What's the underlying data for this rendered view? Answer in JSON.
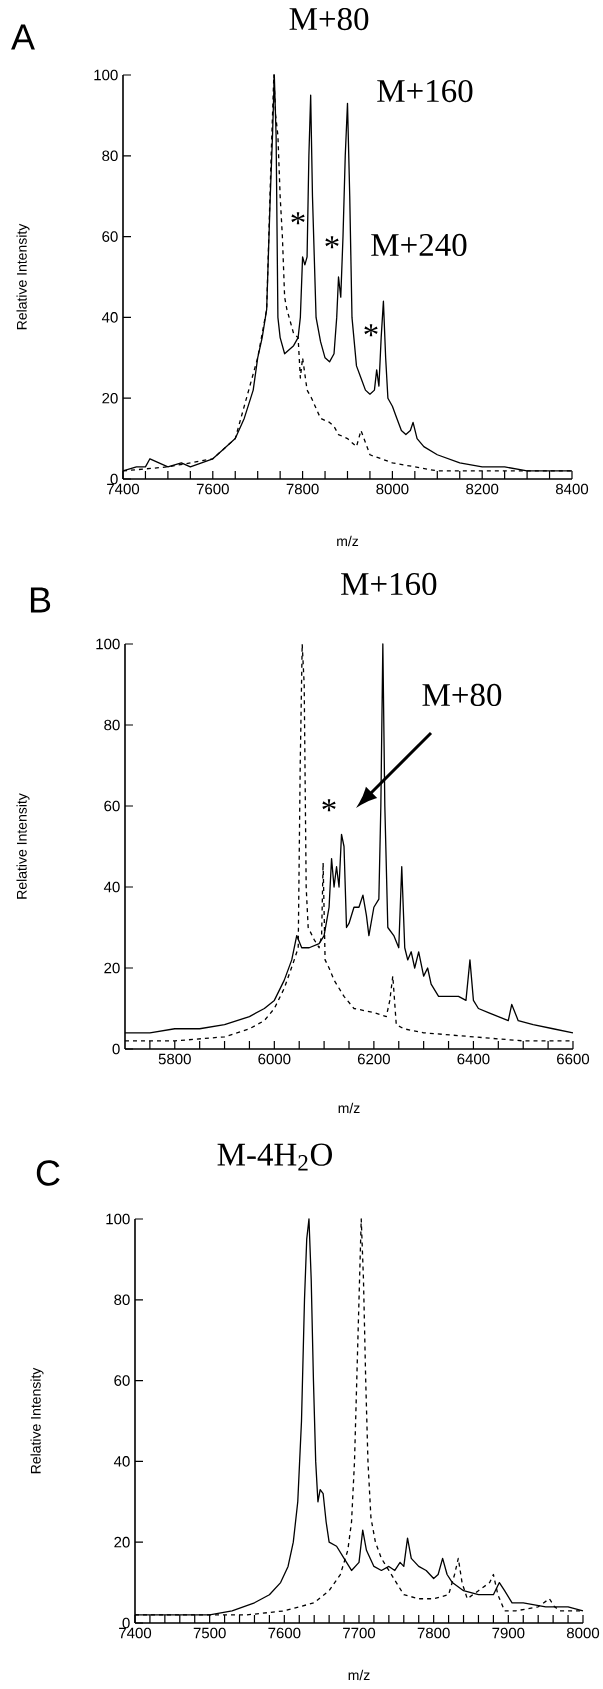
{
  "chart_data": [
    {
      "type": "line",
      "title": "M+80",
      "xlabel": "m/z",
      "ylabel": "Relative Intensity",
      "xlim": [
        7400,
        8400
      ],
      "ylim": [
        0,
        100
      ],
      "xticks": [
        7400,
        {
          "value": 7450,
          "label": null
        },
        {
          "value": 7500,
          "label": null
        },
        {
          "value": 7550,
          "label": null
        },
        7600,
        {
          "value": 7650,
          "label": null
        },
        {
          "value": 7700,
          "label": null
        },
        {
          "value": 7750,
          "label": null
        },
        7800,
        {
          "value": 7850,
          "label": null
        },
        {
          "value": 7900,
          "label": null
        },
        {
          "value": 7950,
          "label": null
        },
        8000,
        {
          "value": 8050,
          "label": null
        },
        {
          "value": 8100,
          "label": null
        },
        {
          "value": 8150,
          "label": null
        },
        8200,
        {
          "value": 8250,
          "label": null
        },
        {
          "value": 8300,
          "label": null
        },
        {
          "value": 8350,
          "label": null
        },
        8400
      ],
      "yticks": [
        0,
        20,
        40,
        60,
        80,
        100
      ],
      "annotations": [
        "A",
        "M+160",
        "M+240",
        "*",
        "*",
        "*"
      ],
      "series": [
        {
          "color": "#000000",
          "line_style": "solid",
          "x": [
            7400,
            7430,
            7450,
            7460,
            7500,
            7530,
            7550,
            7600,
            7620,
            7650,
            7670,
            7690,
            7700,
            7710,
            7720,
            7728,
            7733,
            7737,
            7741,
            7745,
            7750,
            7760,
            7770,
            7780,
            7790,
            7795,
            7800,
            7805,
            7810,
            7814,
            7818,
            7822,
            7830,
            7840,
            7850,
            7860,
            7870,
            7876,
            7880,
            7885,
            7890,
            7895,
            7900,
            7905,
            7910,
            7920,
            7930,
            7940,
            7950,
            7960,
            7965,
            7970,
            7975,
            7980,
            7985,
            7990,
            8000,
            8010,
            8020,
            8030,
            8040,
            8046,
            8055,
            8070,
            8100,
            8150,
            8200,
            8250,
            8300,
            8350,
            8400
          ],
          "values": [
            2,
            3,
            3,
            5,
            3,
            4,
            3,
            5,
            7,
            10,
            15,
            22,
            30,
            35,
            42,
            70,
            85,
            100,
            85,
            40,
            35,
            31,
            32,
            33,
            35,
            40,
            55,
            53,
            55,
            80,
            95,
            70,
            40,
            34,
            30,
            29,
            31,
            40,
            50,
            45,
            60,
            80,
            93,
            70,
            40,
            28,
            25,
            22,
            21,
            22,
            27,
            23,
            35,
            44,
            30,
            20,
            18,
            15,
            12,
            11,
            12,
            14,
            10,
            8,
            6,
            4,
            3,
            3,
            2,
            2,
            2
          ]
        },
        {
          "color": "#000000",
          "line_style": "dashed",
          "x": [
            7400,
            7500,
            7600,
            7650,
            7700,
            7720,
            7730,
            7736,
            7740,
            7745,
            7750,
            7755,
            7760,
            7765,
            7770,
            7780,
            7790,
            7795,
            7800,
            7810,
            7820,
            7840,
            7860,
            7870,
            7880,
            7900,
            7920,
            7930,
            7950,
            8000,
            8050,
            8100,
            8200,
            8300,
            8400
          ],
          "values": [
            2,
            3,
            5,
            10,
            30,
            42,
            80,
            100,
            90,
            85,
            70,
            60,
            45,
            42,
            40,
            36,
            35,
            25,
            30,
            22,
            20,
            15,
            14,
            13,
            11,
            10,
            8,
            12,
            6,
            4,
            3,
            2,
            2,
            2,
            2
          ]
        }
      ]
    },
    {
      "type": "line",
      "title": "M+160",
      "xlabel": "m/z",
      "ylabel": "Relative Intensity",
      "xlim": [
        5700,
        6600
      ],
      "ylim": [
        0,
        100
      ],
      "xticks": [
        {
          "value": 5750,
          "label": null
        },
        5800,
        {
          "value": 5850,
          "label": null
        },
        {
          "value": 5900,
          "label": null
        },
        {
          "value": 5950,
          "label": null
        },
        6000,
        {
          "value": 6050,
          "label": null
        },
        {
          "value": 6100,
          "label": null
        },
        {
          "value": 6150,
          "label": null
        },
        6200,
        {
          "value": 6250,
          "label": null
        },
        {
          "value": 6300,
          "label": null
        },
        {
          "value": 6350,
          "label": null
        },
        6400,
        {
          "value": 6450,
          "label": null
        },
        {
          "value": 6500,
          "label": null
        },
        {
          "value": 6550,
          "label": null
        },
        6600
      ],
      "yticks": [
        0,
        20,
        40,
        60,
        80,
        100
      ],
      "annotations": [
        "B",
        "*",
        "M+80"
      ],
      "series": [
        {
          "color": "#000000",
          "line_style": "solid",
          "x": [
            5700,
            5750,
            5800,
            5850,
            5900,
            5950,
            5980,
            6000,
            6020,
            6035,
            6045,
            6055,
            6070,
            6090,
            6100,
            6110,
            6115,
            6120,
            6125,
            6130,
            6135,
            6140,
            6145,
            6150,
            6160,
            6170,
            6178,
            6185,
            6190,
            6200,
            6210,
            6214,
            6218,
            6222,
            6228,
            6240,
            6250,
            6256,
            6262,
            6268,
            6275,
            6282,
            6290,
            6300,
            6308,
            6315,
            6330,
            6350,
            6370,
            6385,
            6393,
            6400,
            6410,
            6430,
            6450,
            6470,
            6477,
            6490,
            6520,
            6560,
            6600
          ],
          "values": [
            4,
            4,
            5,
            5,
            6,
            8,
            10,
            12,
            17,
            22,
            28,
            25,
            25,
            26,
            28,
            35,
            47,
            40,
            45,
            40,
            53,
            50,
            30,
            31,
            35,
            35,
            38,
            33,
            28,
            35,
            37,
            60,
            100,
            60,
            30,
            28,
            25,
            45,
            25,
            22,
            24,
            20,
            24,
            18,
            20,
            16,
            13,
            13,
            13,
            12,
            22,
            12,
            10,
            9,
            8,
            7,
            11,
            7,
            6,
            5,
            4
          ]
        },
        {
          "color": "#000000",
          "line_style": "dashed",
          "x": [
            5700,
            5800,
            5900,
            5950,
            5980,
            6000,
            6020,
            6040,
            6048,
            6052,
            6056,
            6060,
            6064,
            6068,
            6080,
            6090,
            6095,
            6098,
            6102,
            6110,
            6120,
            6140,
            6160,
            6200,
            6225,
            6232,
            6238,
            6245,
            6260,
            6300,
            6400,
            6500,
            6600
          ],
          "values": [
            2,
            2,
            3,
            5,
            7,
            10,
            15,
            22,
            25,
            70,
            100,
            90,
            40,
            30,
            27,
            25,
            28,
            46,
            22,
            20,
            17,
            13,
            10,
            9,
            8,
            12,
            18,
            6,
            5,
            4,
            3,
            2,
            2
          ]
        }
      ]
    },
    {
      "type": "line",
      "title": "M-4H$_{2}$O",
      "xlabel": "m/z",
      "ylabel": "Relative Intensity",
      "xlim": [
        7400,
        8000
      ],
      "ylim": [
        0,
        100
      ],
      "xticks": [
        7400,
        {
          "value": 7420,
          "label": null
        },
        {
          "value": 7440,
          "label": null
        },
        {
          "value": 7460,
          "label": null
        },
        {
          "value": 7480,
          "label": null
        },
        7500,
        {
          "value": 7520,
          "label": null
        },
        {
          "value": 7540,
          "label": null
        },
        {
          "value": 7560,
          "label": null
        },
        {
          "value": 7580,
          "label": null
        },
        7600,
        {
          "value": 7620,
          "label": null
        },
        {
          "value": 7640,
          "label": null
        },
        {
          "value": 7660,
          "label": null
        },
        {
          "value": 7680,
          "label": null
        },
        7700,
        {
          "value": 7720,
          "label": null
        },
        {
          "value": 7740,
          "label": null
        },
        {
          "value": 7760,
          "label": null
        },
        {
          "value": 7780,
          "label": null
        },
        7800,
        {
          "value": 7820,
          "label": null
        },
        {
          "value": 7840,
          "label": null
        },
        {
          "value": 7860,
          "label": null
        },
        {
          "value": 7880,
          "label": null
        },
        7900,
        {
          "value": 7920,
          "label": null
        },
        {
          "value": 7940,
          "label": null
        },
        {
          "value": 7960,
          "label": null
        },
        {
          "value": 7980,
          "label": null
        },
        8000
      ],
      "yticks": [
        0,
        20,
        40,
        60,
        80,
        100
      ],
      "annotations": [
        "C"
      ],
      "series": [
        {
          "color": "#000000",
          "line_style": "solid",
          "x": [
            7400,
            7450,
            7500,
            7530,
            7560,
            7580,
            7595,
            7605,
            7612,
            7618,
            7623,
            7627,
            7630,
            7633,
            7636,
            7639,
            7642,
            7645,
            7648,
            7652,
            7656,
            7660,
            7670,
            7680,
            7690,
            7700,
            7705,
            7710,
            7720,
            7730,
            7740,
            7748,
            7755,
            7760,
            7765,
            7770,
            7780,
            7790,
            7800,
            7806,
            7812,
            7818,
            7825,
            7840,
            7860,
            7880,
            7888,
            7895,
            7905,
            7920,
            7950,
            7980,
            8000
          ],
          "values": [
            2,
            2,
            2,
            3,
            5,
            7,
            10,
            14,
            20,
            30,
            50,
            80,
            95,
            100,
            85,
            60,
            40,
            30,
            33,
            32,
            25,
            20,
            19,
            16,
            13,
            15,
            23,
            18,
            14,
            13,
            14,
            13,
            15,
            14,
            21,
            16,
            14,
            13,
            11,
            12,
            16,
            12,
            10,
            8,
            7,
            7,
            10,
            8,
            5,
            5,
            4,
            4,
            3
          ]
        },
        {
          "color": "#000000",
          "line_style": "dashed",
          "x": [
            7400,
            7500,
            7550,
            7600,
            7640,
            7660,
            7675,
            7685,
            7690,
            7694,
            7697,
            7700,
            7703,
            7706,
            7709,
            7712,
            7716,
            7722,
            7730,
            7740,
            7750,
            7760,
            7780,
            7800,
            7820,
            7828,
            7833,
            7838,
            7845,
            7860,
            7875,
            7880,
            7886,
            7895,
            7910,
            7940,
            7955,
            7962,
            7970,
            8000
          ],
          "values": [
            2,
            2,
            2,
            3,
            5,
            8,
            12,
            18,
            25,
            40,
            60,
            80,
            100,
            85,
            60,
            40,
            26,
            20,
            16,
            13,
            10,
            7,
            6,
            6,
            7,
            12,
            16,
            10,
            6,
            8,
            10,
            12,
            7,
            3,
            3,
            4,
            6,
            4,
            3,
            3
          ]
        }
      ]
    }
  ]
}
